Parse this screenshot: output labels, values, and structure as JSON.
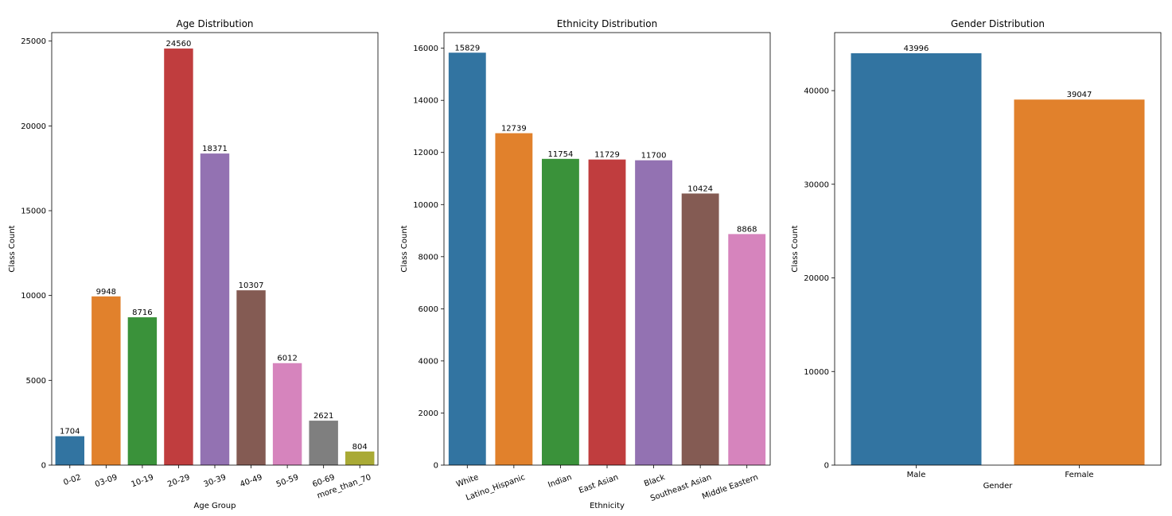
{
  "chart_data": [
    {
      "type": "bar",
      "title": "Age Distribution",
      "xlabel": "Age Group",
      "ylabel": "Class Count",
      "categories": [
        "0-02",
        "03-09",
        "10-19",
        "20-29",
        "30-39",
        "40-49",
        "50-59",
        "60-69",
        "more_than_70"
      ],
      "values": [
        1704,
        9948,
        8716,
        24560,
        18371,
        10307,
        6012,
        2621,
        804
      ],
      "colors": [
        "#3274a1",
        "#e1812c",
        "#3a923a",
        "#c03d3e",
        "#9372b2",
        "#845b53",
        "#d684bd",
        "#7f7f7f",
        "#a9aa35"
      ],
      "ylim": [
        0,
        25500
      ],
      "yticks": [
        0,
        5000,
        10000,
        15000,
        20000,
        25000
      ],
      "xtick_rotation": 20,
      "grid": false,
      "legend": false
    },
    {
      "type": "bar",
      "title": "Ethnicity Distribution",
      "xlabel": "Ethnicity",
      "ylabel": "Class Count",
      "categories": [
        "White",
        "Latino_Hispanic",
        "Indian",
        "East Asian",
        "Black",
        "Southeast Asian",
        "Middle Eastern"
      ],
      "values": [
        15829,
        12739,
        11754,
        11729,
        11700,
        10424,
        8868
      ],
      "colors": [
        "#3274a1",
        "#e1812c",
        "#3a923a",
        "#c03d3e",
        "#9372b2",
        "#845b53",
        "#d684bd"
      ],
      "ylim": [
        0,
        16600
      ],
      "yticks": [
        0,
        2000,
        4000,
        6000,
        8000,
        10000,
        12000,
        14000,
        16000
      ],
      "xtick_rotation": 20,
      "grid": false,
      "legend": false
    },
    {
      "type": "bar",
      "title": "Gender Distribution",
      "xlabel": "Gender",
      "ylabel": "Class Count",
      "categories": [
        "Male",
        "Female"
      ],
      "values": [
        43996,
        39047
      ],
      "colors": [
        "#3274a1",
        "#e1812c"
      ],
      "ylim": [
        0,
        46200
      ],
      "yticks": [
        0,
        10000,
        20000,
        30000,
        40000
      ],
      "xtick_rotation": 0,
      "grid": false,
      "legend": false
    }
  ]
}
